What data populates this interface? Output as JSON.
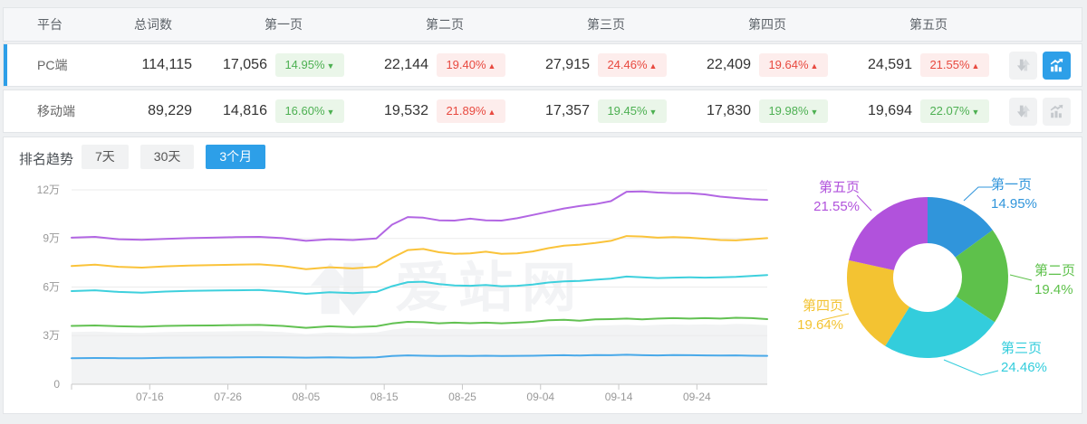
{
  "table": {
    "headers": {
      "platform": "平台",
      "total": "总词数",
      "p1": "第一页",
      "p2": "第二页",
      "p3": "第三页",
      "p4": "第四页",
      "p5": "第五页"
    },
    "rows": [
      {
        "platform": "PC端",
        "total": "114,115",
        "selected": true,
        "pages": [
          {
            "value": "17,056",
            "pct": "14.95%",
            "dir": "down"
          },
          {
            "value": "22,144",
            "pct": "19.40%",
            "dir": "up"
          },
          {
            "value": "27,915",
            "pct": "24.46%",
            "dir": "up"
          },
          {
            "value": "22,409",
            "pct": "19.64%",
            "dir": "up"
          },
          {
            "value": "24,591",
            "pct": "21.55%",
            "dir": "up"
          }
        ]
      },
      {
        "platform": "移动端",
        "total": "89,229",
        "selected": false,
        "pages": [
          {
            "value": "14,816",
            "pct": "16.60%",
            "dir": "down"
          },
          {
            "value": "19,532",
            "pct": "21.89%",
            "dir": "up"
          },
          {
            "value": "17,357",
            "pct": "19.45%",
            "dir": "down"
          },
          {
            "value": "17,830",
            "pct": "19.98%",
            "dir": "down"
          },
          {
            "value": "19,694",
            "pct": "22.07%",
            "dir": "down"
          }
        ]
      }
    ]
  },
  "trend": {
    "label": "排名趋势",
    "tabs": [
      {
        "label": "7天",
        "active": false
      },
      {
        "label": "30天",
        "active": false
      },
      {
        "label": "3个月",
        "active": true
      }
    ]
  },
  "watermark": "爱站网",
  "chart_data": [
    {
      "type": "line",
      "title": "排名趋势 3个月 (PC端, 累计词数)",
      "unit": "万",
      "ylim": [
        0,
        12
      ],
      "y_ticks": [
        "12万",
        "9万",
        "6万",
        "3万",
        "0"
      ],
      "x_ticks": [
        "07-16",
        "07-26",
        "08-05",
        "08-15",
        "08-25",
        "09-04",
        "09-14",
        "09-24"
      ],
      "tick_days": [
        10,
        20,
        30,
        40,
        50,
        60,
        70,
        80
      ],
      "day_span": 89,
      "grid": "horizontal",
      "days": [
        0,
        3,
        6,
        9,
        12,
        15,
        18,
        21,
        24,
        27,
        30,
        33,
        36,
        39,
        41,
        43,
        45,
        47,
        49,
        51,
        53,
        55,
        57,
        59,
        61,
        63,
        65,
        67,
        69,
        71,
        73,
        75,
        77,
        79,
        81,
        83,
        85,
        87,
        89
      ],
      "series": [
        {
          "name": "第五页累计",
          "color": "#b266e3",
          "values": [
            9.05,
            9.1,
            8.95,
            8.92,
            8.97,
            9.02,
            9.05,
            9.08,
            9.1,
            9.02,
            8.85,
            8.95,
            8.9,
            9.0,
            9.85,
            10.32,
            10.28,
            10.12,
            10.1,
            10.22,
            10.12,
            10.1,
            10.25,
            10.45,
            10.65,
            10.85,
            11.0,
            11.12,
            11.3,
            11.88,
            11.9,
            11.83,
            11.8,
            11.8,
            11.72,
            11.58,
            11.5,
            11.42,
            11.38
          ]
        },
        {
          "name": "第四页累计",
          "color": "#fac33a",
          "values": [
            7.3,
            7.38,
            7.25,
            7.2,
            7.28,
            7.32,
            7.35,
            7.38,
            7.4,
            7.3,
            7.1,
            7.22,
            7.15,
            7.25,
            7.8,
            8.28,
            8.35,
            8.15,
            8.05,
            8.08,
            8.18,
            8.05,
            8.08,
            8.2,
            8.4,
            8.55,
            8.62,
            8.72,
            8.85,
            9.15,
            9.12,
            9.05,
            9.08,
            9.05,
            8.98,
            8.9,
            8.88,
            8.95,
            9.02
          ]
        },
        {
          "name": "第三页累计",
          "color": "#3ed0dd",
          "values": [
            5.75,
            5.8,
            5.7,
            5.65,
            5.72,
            5.76,
            5.78,
            5.8,
            5.82,
            5.72,
            5.58,
            5.68,
            5.62,
            5.7,
            6.05,
            6.3,
            6.33,
            6.18,
            6.1,
            6.08,
            6.12,
            6.05,
            6.08,
            6.15,
            6.28,
            6.35,
            6.38,
            6.45,
            6.52,
            6.65,
            6.6,
            6.55,
            6.58,
            6.6,
            6.58,
            6.6,
            6.63,
            6.68,
            6.74
          ]
        },
        {
          "name": "第二页累计",
          "color": "#62c152",
          "area": true,
          "values": [
            3.6,
            3.63,
            3.58,
            3.55,
            3.6,
            3.62,
            3.63,
            3.65,
            3.66,
            3.6,
            3.48,
            3.58,
            3.52,
            3.58,
            3.75,
            3.85,
            3.83,
            3.76,
            3.8,
            3.77,
            3.8,
            3.76,
            3.8,
            3.85,
            3.95,
            3.98,
            3.92,
            4.0,
            4.02,
            4.05,
            4.0,
            4.05,
            4.08,
            4.05,
            4.08,
            4.05,
            4.1,
            4.08,
            4.02
          ]
        },
        {
          "name": "第一页",
          "color": "#49a9e9",
          "values": [
            1.6,
            1.62,
            1.61,
            1.6,
            1.63,
            1.64,
            1.65,
            1.66,
            1.67,
            1.66,
            1.64,
            1.66,
            1.64,
            1.66,
            1.74,
            1.78,
            1.76,
            1.74,
            1.75,
            1.74,
            1.76,
            1.74,
            1.75,
            1.76,
            1.78,
            1.79,
            1.77,
            1.8,
            1.79,
            1.82,
            1.79,
            1.78,
            1.8,
            1.79,
            1.78,
            1.77,
            1.78,
            1.76,
            1.75
          ]
        }
      ]
    },
    {
      "type": "pie",
      "title": "PC端各页占比",
      "donut": true,
      "inner_radius_ratio": 0.43,
      "slices": [
        {
          "label": "第一页",
          "pct": 14.95,
          "pct_label": "14.95%",
          "color": "#3095db"
        },
        {
          "label": "第二页",
          "pct": 19.4,
          "pct_label": "19.4%",
          "color": "#5ec14b"
        },
        {
          "label": "第三页",
          "pct": 24.46,
          "pct_label": "24.46%",
          "color": "#33cddc"
        },
        {
          "label": "第四页",
          "pct": 19.64,
          "pct_label": "19.64%",
          "color": "#f3c332"
        },
        {
          "label": "第五页",
          "pct": 21.55,
          "pct_label": "21.55%",
          "color": "#b152dc"
        }
      ]
    }
  ]
}
